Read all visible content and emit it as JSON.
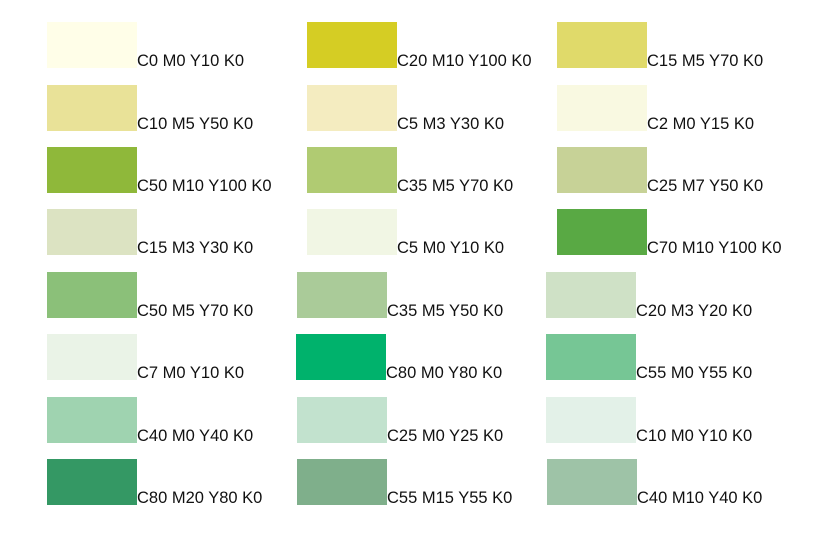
{
  "swatches": [
    {
      "label": "C0 M0 Y10 K0",
      "color": "#FFFEE8"
    },
    {
      "label": "C20 M10 Y100 K0",
      "color": "#D5CD24"
    },
    {
      "label": "C15 M5 Y70 K0",
      "color": "#E0DA6A"
    },
    {
      "label": "C10 M5 Y50 K0",
      "color": "#E9E298"
    },
    {
      "label": "C5 M3 Y30 K0",
      "color": "#F4ECC0"
    },
    {
      "label": "C2 M0 Y15 K0",
      "color": "#F9F9E1"
    },
    {
      "label": "C50 M10 Y100 K0",
      "color": "#8FB83A"
    },
    {
      "label": "C35 M5 Y70 K0",
      "color": "#B0CB72"
    },
    {
      "label": "C25 M7 Y50 K0",
      "color": "#C7D297"
    },
    {
      "label": "C15 M3 Y30 K0",
      "color": "#DCE3C2"
    },
    {
      "label": "C5 M0 Y10 K0",
      "color": "#F1F6E4"
    },
    {
      "label": "C70 M10 Y100 K0",
      "color": "#59A944"
    },
    {
      "label": "C50 M5 Y70 K0",
      "color": "#8BC079"
    },
    {
      "label": "C35 M5 Y50 K0",
      "color": "#AACB99"
    },
    {
      "label": "C20 M3 Y20 K0",
      "color": "#CFE1C6"
    },
    {
      "label": "C7 M0 Y10 K0",
      "color": "#EAF3E7"
    },
    {
      "label": "C80 M0 Y80 K0",
      "color": "#00B26C"
    },
    {
      "label": "C55 M0 Y55 K0",
      "color": "#76C695"
    },
    {
      "label": "C40 M0 Y40 K0",
      "color": "#9FD3B0"
    },
    {
      "label": "C25 M0 Y25 K0",
      "color": "#C2E2CE"
    },
    {
      "label": "C10 M0 Y10 K0",
      "color": "#E3F1E8"
    },
    {
      "label": "C80 M20 Y80 K0",
      "color": "#349864"
    },
    {
      "label": "C55 M15 Y55 K0",
      "color": "#7FAF8B"
    },
    {
      "label": "C40 M10 Y40 K0",
      "color": "#9EC3A7"
    }
  ]
}
